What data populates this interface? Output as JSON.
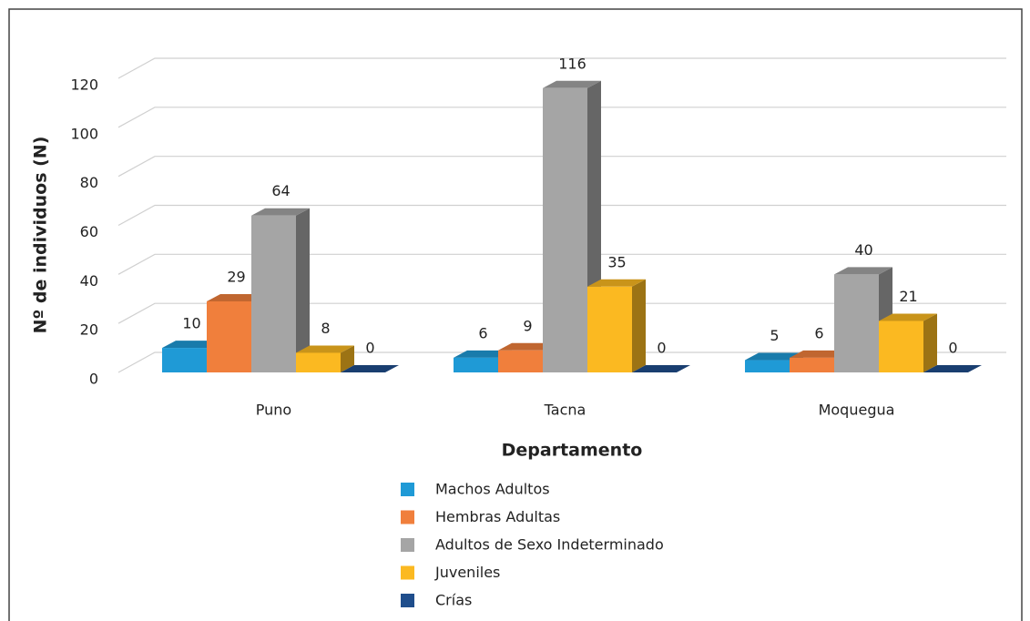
{
  "chart_data": {
    "type": "bar3d",
    "x_label": "Departamento",
    "y_label": "Nº de individuos (N)",
    "categories": [
      "Puno",
      "Tacna",
      "Moquegua"
    ],
    "series": [
      {
        "name": "Machos Adultos",
        "color": "#1f9ad6",
        "values": [
          10,
          6,
          5
        ]
      },
      {
        "name": "Hembras Adultas",
        "color": "#f07f3c",
        "values": [
          29,
          9,
          6
        ]
      },
      {
        "name": "Adultos de Sexo Indeterminado",
        "color": "#a5a5a5",
        "values": [
          64,
          116,
          40
        ]
      },
      {
        "name": "Juveniles",
        "color": "#fbb921",
        "values": [
          8,
          35,
          21
        ]
      },
      {
        "name": "Crías",
        "color": "#1f4e8c",
        "values": [
          0,
          0,
          0
        ]
      }
    ],
    "ylim": [
      0,
      120
    ],
    "yticks": [
      0,
      20,
      40,
      60,
      80,
      100,
      120
    ],
    "grid": true,
    "legend": "bottom"
  }
}
